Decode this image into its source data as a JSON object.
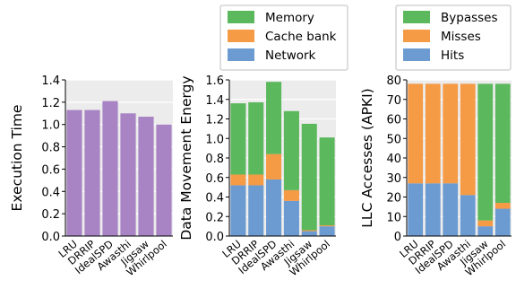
{
  "chart_data": [
    {
      "type": "bar",
      "categories": [
        "LRU",
        "DRRIP",
        "IdealSPD",
        "Awasthi",
        "Jigsaw",
        "Whirlpool"
      ],
      "series": [
        {
          "values": [
            1.13,
            1.13,
            1.21,
            1.1,
            1.07,
            1.0
          ]
        }
      ],
      "ylabel": "Execution Time",
      "ylim": [
        0,
        1.4
      ],
      "yticks": [
        "0.0",
        "0.2",
        "0.4",
        "0.6",
        "0.8",
        "1.0",
        "1.2",
        "1.4"
      ],
      "grid": true,
      "colors": {
        "bar": "#a884c4",
        "plot_bg": "#ececec"
      }
    },
    {
      "type": "bar",
      "stacked": true,
      "categories": [
        "LRU",
        "DRRIP",
        "IdealSPD",
        "Awasthi",
        "Jigsaw",
        "Whirlpool"
      ],
      "series": [
        {
          "name": "Network",
          "color": "#6b9bd1",
          "values": [
            0.52,
            0.52,
            0.58,
            0.36,
            0.05,
            0.1
          ]
        },
        {
          "name": "Cache bank",
          "color": "#f59a45",
          "values": [
            0.11,
            0.11,
            0.26,
            0.11,
            0.01,
            0.01
          ]
        },
        {
          "name": "Memory",
          "color": "#5cb85c",
          "values": [
            0.73,
            0.74,
            0.74,
            0.81,
            1.09,
            0.9
          ]
        }
      ],
      "legend_order": [
        "Memory",
        "Cache bank",
        "Network"
      ],
      "ylabel": "Data Movement Energy",
      "ylim": [
        0,
        1.6
      ],
      "yticks": [
        "0.0",
        "0.2",
        "0.4",
        "0.6",
        "0.8",
        "1.0",
        "1.2",
        "1.4",
        "1.6"
      ],
      "legend_position": "top",
      "grid": true
    },
    {
      "type": "bar",
      "stacked": true,
      "categories": [
        "LRU",
        "DRRIP",
        "IdealSPD",
        "Awasthi",
        "Jigsaw",
        "Whirlpool"
      ],
      "series": [
        {
          "name": "Hits",
          "color": "#6b9bd1",
          "values": [
            27,
            27,
            27,
            21,
            5,
            14
          ]
        },
        {
          "name": "Misses",
          "color": "#f59a45",
          "values": [
            51,
            51,
            51,
            57,
            3,
            3
          ]
        },
        {
          "name": "Bypasses",
          "color": "#5cb85c",
          "values": [
            0,
            0,
            0,
            0,
            70,
            61
          ]
        }
      ],
      "legend_order": [
        "Bypasses",
        "Misses",
        "Hits"
      ],
      "ylabel": "LLC Accesses (APKI)",
      "ylim": [
        0,
        80
      ],
      "yticks": [
        "0",
        "10",
        "20",
        "30",
        "40",
        "50",
        "60",
        "70",
        "80"
      ],
      "legend_position": "top",
      "grid": true
    }
  ]
}
